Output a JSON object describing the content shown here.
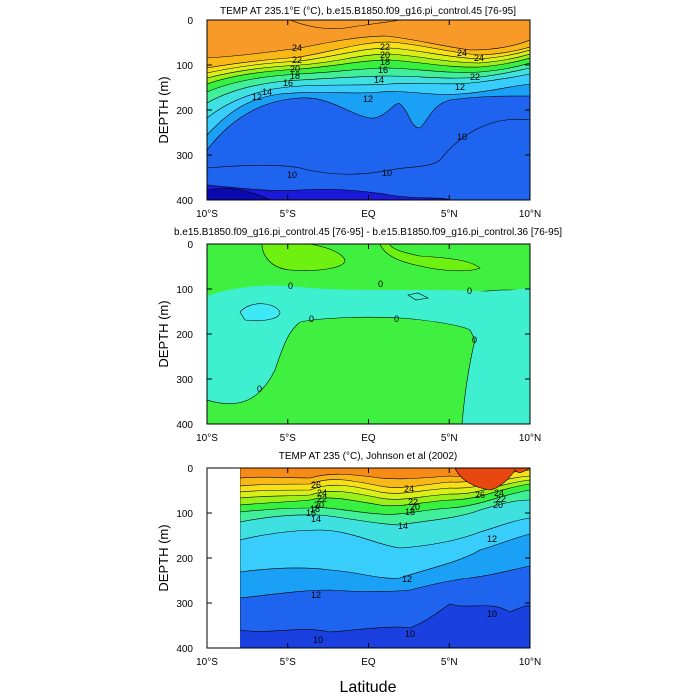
{
  "xlabel": "Latitude",
  "chart_data": [
    {
      "type": "contour",
      "title": "TEMP AT 235.1°E (°C), b.e15.B1850.f09_g16.pi_control.45 [76-95]",
      "xlabel": "Latitude",
      "ylabel": "DEPTH (m)",
      "xlim": [
        -10,
        10
      ],
      "ylim": [
        400,
        0
      ],
      "x_ticks": [
        "10°S",
        "5°S",
        "EQ",
        "5°N",
        "10°N"
      ],
      "y_ticks": [
        "0",
        "100",
        "200",
        "300",
        "400"
      ],
      "contour_labels": [
        "24",
        "22",
        "20",
        "18",
        "16",
        "14",
        "12",
        "12",
        "10",
        "10",
        "10",
        "24",
        "22",
        "20",
        "18",
        "16",
        "14",
        "12",
        "24",
        "22"
      ],
      "palette": [
        "#1a1ad8",
        "#1e64ee",
        "#1aa0f5",
        "#38cdfa",
        "#3ee0e0",
        "#41ef9a",
        "#38f040",
        "#9af018",
        "#d8f018",
        "#f8e018",
        "#f8b818",
        "#f89a28",
        "#f88a18",
        "#e84810"
      ]
    },
    {
      "type": "contour",
      "title": "b.e15.B1850.f09_g16.pi_control.45 [76-95] - b.e15.B1850.f09_g16.pi_control.36 [76-95]",
      "xlabel": "Latitude",
      "ylabel": "DEPTH (m)",
      "xlim": [
        -10,
        10
      ],
      "ylim": [
        400,
        0
      ],
      "x_ticks": [
        "10°S",
        "5°S",
        "EQ",
        "5°N",
        "10°N"
      ],
      "y_ticks": [
        "0",
        "100",
        "200",
        "300",
        "400"
      ],
      "contour_labels": [
        "0",
        "0",
        "0",
        "0",
        "0",
        "0",
        "0"
      ],
      "palette": [
        "#40f040",
        "#3ef0d0",
        "#3ee8f5",
        "#6ef010"
      ]
    },
    {
      "type": "contour",
      "title": "TEMP AT 235 (°C), Johnson et al (2002)",
      "xlabel": "Latitude",
      "ylabel": "DEPTH (m)",
      "xlim": [
        -10,
        10
      ],
      "ylim": [
        400,
        0
      ],
      "x_ticks": [
        "10°S",
        "5°S",
        "EQ",
        "5°N",
        "10°N"
      ],
      "y_ticks": [
        "0",
        "100",
        "200",
        "300",
        "400"
      ],
      "data_xlim": [
        -8,
        10
      ],
      "contour_labels": [
        "26",
        "24",
        "22",
        "20",
        "18",
        "16",
        "14",
        "24",
        "22",
        "20",
        "18",
        "14",
        "26",
        "24",
        "22",
        "20",
        "12",
        "12",
        "12",
        "10",
        "10",
        "10"
      ],
      "palette": [
        "#1a40e0",
        "#1e64ee",
        "#1aa0f5",
        "#38cdfa",
        "#3ee0e0",
        "#41ef9a",
        "#38f040",
        "#9af018",
        "#d8f018",
        "#f8e018",
        "#f8b818",
        "#f89a28",
        "#f88a18",
        "#e84810"
      ]
    }
  ]
}
